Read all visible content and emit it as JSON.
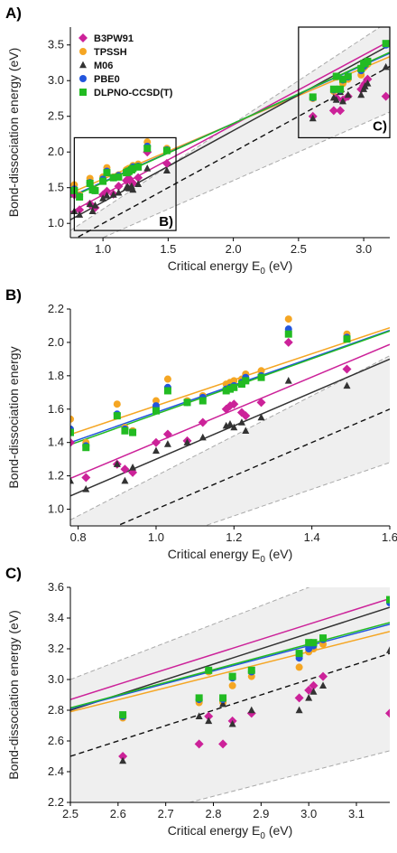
{
  "chart_data": [
    {
      "panel_label": "A)",
      "type": "scatter",
      "xlabel": "Critical energy E",
      "xlabel_sub": "0",
      "xlabel_unit": " (eV)",
      "ylabel": "Bond-dissociation energy (eV)",
      "xlim": [
        0.75,
        3.2
      ],
      "ylim": [
        0.8,
        3.75
      ],
      "xticks": [
        "1.0",
        "1.5",
        "2.0",
        "2.5",
        "3.0"
      ],
      "yticks": [
        "1.0",
        "1.5",
        "2.0",
        "2.5",
        "3.0",
        "3.5"
      ],
      "legend_position": "top-left",
      "inset_boxes": [
        {
          "label": "B)",
          "x": [
            0.78,
            1.56
          ],
          "y": [
            0.9,
            2.2
          ]
        },
        {
          "label": "C)",
          "x": [
            2.5,
            3.2
          ],
          "y": [
            2.2,
            3.75
          ]
        }
      ]
    },
    {
      "panel_label": "B)",
      "type": "scatter",
      "xlabel": "Critical energy E",
      "xlabel_sub": "0",
      "xlabel_unit": " (eV)",
      "ylabel": "Bond-dissociation energy",
      "xlim": [
        0.78,
        1.6
      ],
      "ylim": [
        0.9,
        2.2
      ],
      "xticks": [
        "0.8",
        "1.0",
        "1.2",
        "1.4",
        "1.6"
      ],
      "yticks": [
        "1.0",
        "1.2",
        "1.4",
        "1.6",
        "1.8",
        "2.0",
        "2.2"
      ]
    },
    {
      "panel_label": "C)",
      "type": "scatter",
      "xlabel": "Critical energy E",
      "xlabel_sub": "0",
      "xlabel_unit": " (eV)",
      "ylabel": "Bond-dissociation energy (eV)",
      "xlim": [
        2.5,
        3.17
      ],
      "ylim": [
        2.2,
        3.6
      ],
      "xticks": [
        "2.5",
        "2.6",
        "2.7",
        "2.8",
        "2.9",
        "3.0",
        "3.1"
      ],
      "yticks": [
        "2.2",
        "2.4",
        "2.6",
        "2.8",
        "3.0",
        "3.2",
        "3.4",
        "3.6"
      ]
    }
  ],
  "x": [
    0.78,
    0.82,
    0.9,
    0.92,
    0.94,
    1.0,
    1.03,
    1.08,
    1.12,
    1.18,
    1.19,
    1.2,
    1.22,
    1.23,
    1.27,
    1.34,
    1.49,
    2.61,
    2.77,
    2.79,
    2.82,
    2.84,
    2.88,
    2.98,
    3.0,
    3.01,
    3.03,
    3.17
  ],
  "series": [
    {
      "name": "B3PW91",
      "marker": "diamond",
      "color": "#cc2299",
      "values": [
        1.4,
        1.19,
        1.27,
        1.24,
        1.22,
        1.4,
        1.45,
        1.41,
        1.52,
        1.6,
        1.62,
        1.63,
        1.58,
        1.56,
        1.64,
        2.0,
        1.84,
        2.5,
        2.58,
        2.76,
        2.58,
        2.73,
        2.78,
        2.88,
        2.93,
        2.96,
        3.02,
        2.78
      ],
      "fit": [
        0.42,
        0.98
      ]
    },
    {
      "name": "TPSSH",
      "marker": "circle",
      "color": "#f5a623",
      "values": [
        1.54,
        1.4,
        1.63,
        1.49,
        1.47,
        1.65,
        1.78,
        1.65,
        1.68,
        1.75,
        1.76,
        1.77,
        1.78,
        1.81,
        1.83,
        2.14,
        2.05,
        2.75,
        2.85,
        3.05,
        2.85,
        2.96,
        3.02,
        3.08,
        3.18,
        3.2,
        3.23,
        3.51
      ],
      "fit": [
        0.84,
        0.78
      ]
    },
    {
      "name": "M06",
      "marker": "triangle",
      "color": "#333333",
      "values": [
        1.17,
        1.12,
        1.27,
        1.17,
        1.25,
        1.35,
        1.39,
        1.4,
        1.43,
        1.5,
        1.51,
        1.49,
        1.52,
        1.47,
        1.55,
        1.77,
        1.74,
        2.47,
        2.76,
        2.73,
        2.84,
        2.71,
        2.8,
        2.8,
        2.88,
        2.92,
        2.96,
        3.19
      ],
      "fit": [
        0.3,
        1.0
      ]
    },
    {
      "name": "PBE0",
      "marker": "circle",
      "color": "#2255dd",
      "values": [
        1.48,
        1.38,
        1.57,
        1.48,
        1.46,
        1.62,
        1.73,
        1.64,
        1.67,
        1.72,
        1.73,
        1.74,
        1.76,
        1.79,
        1.8,
        2.08,
        2.03,
        2.76,
        2.87,
        3.06,
        2.87,
        3.01,
        3.05,
        3.14,
        3.2,
        3.22,
        3.26,
        3.5
      ],
      "fit": [
        0.76,
        0.82
      ]
    },
    {
      "name": "DLPNO-CCSD(T)",
      "marker": "square",
      "color": "#22bb22",
      "values": [
        1.46,
        1.37,
        1.56,
        1.47,
        1.46,
        1.59,
        1.71,
        1.64,
        1.65,
        1.71,
        1.72,
        1.73,
        1.75,
        1.77,
        1.79,
        2.05,
        2.02,
        2.77,
        2.88,
        3.06,
        2.88,
        3.02,
        3.06,
        3.17,
        3.24,
        3.24,
        3.27,
        3.52
      ],
      "fit": [
        0.74,
        0.83
      ]
    }
  ],
  "reference_line": {
    "slope": 1.0,
    "intercept": 0.0
  },
  "error_band": {
    "lower_slope": 0.8,
    "upper_slope": 1.2
  }
}
